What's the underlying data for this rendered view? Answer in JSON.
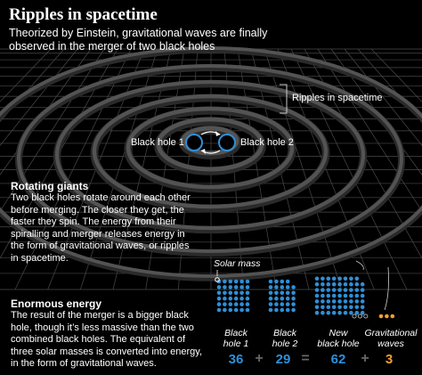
{
  "title": "Ripples in spacetime",
  "subtitle": "Theorized by Einstein, gravitational waves are finally observed in the merger of two black holes",
  "labels": {
    "ripples": "Ripples in spacetime",
    "bh1": "Black hole 1",
    "bh2": "Black hole 2",
    "solar_mass": "Solar mass"
  },
  "rotating": {
    "heading": "Rotating giants",
    "body": "Two black holes rotate around each other before merging. The closer they get, the faster they spin. The energy from their spiralling and merger releases energy in the form of gravitational waves, or ripples in spacetime."
  },
  "energy": {
    "heading": "Enormous energy",
    "body": "The result of the merger is a bigger black hole, though it’s less massive than the two combined black holes. The equivalent of three solar masses is converted into energy, in the form of gravitational waves."
  },
  "masses": [
    {
      "label1": "Black",
      "label2": "hole 1",
      "value": "36"
    },
    {
      "label1": "Black",
      "label2": "hole 2",
      "value": "29"
    },
    {
      "label1": "New",
      "label2": "black hole",
      "value": "62"
    },
    {
      "label1": "Gravitational",
      "label2": "waves",
      "value": "3"
    }
  ],
  "operators": [
    "+",
    "=",
    "+"
  ],
  "colors": {
    "blue": "#2f8fd6",
    "orange": "#f0a030",
    "grid": "#4a4a4a",
    "ripple": "#5a5a5a"
  }
}
